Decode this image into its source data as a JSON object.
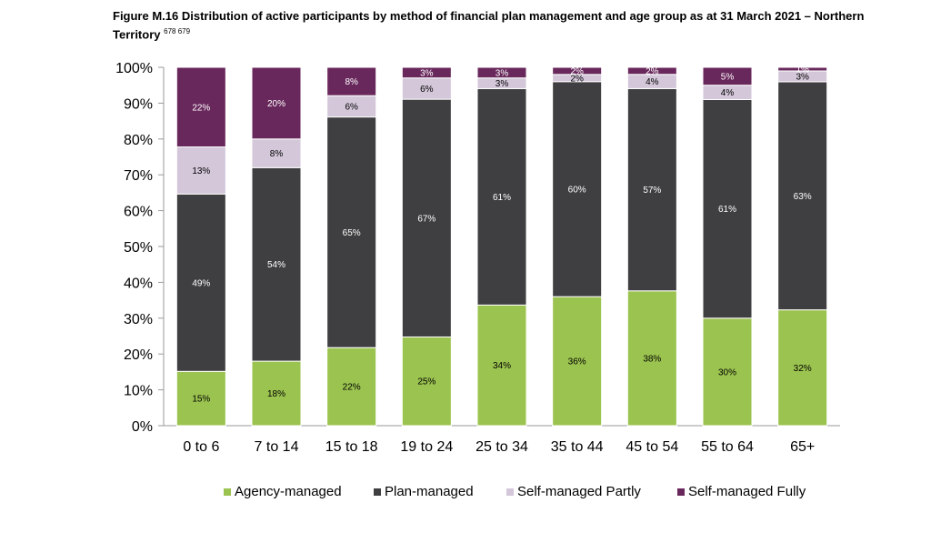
{
  "figure": {
    "title": "Figure M.16 Distribution of active participants by method of financial plan management and age group as at 31 March 2021 – Northern Territory",
    "footnote_refs": "678 679"
  },
  "chart_data": {
    "type": "bar",
    "stacked": true,
    "title": "",
    "xlabel": "",
    "ylabel": "",
    "ylim": [
      0,
      100
    ],
    "y_ticks": [
      "0%",
      "10%",
      "20%",
      "30%",
      "40%",
      "50%",
      "60%",
      "70%",
      "80%",
      "90%",
      "100%"
    ],
    "categories": [
      "0 to 6",
      "7 to 14",
      "15 to 18",
      "19 to 24",
      "25 to 34",
      "35 to 44",
      "45 to 54",
      "55 to 64",
      "65+"
    ],
    "series": [
      {
        "name": "Agency-managed",
        "color": "#9bc34f",
        "label_color": "#000000",
        "values": [
          15,
          18,
          22,
          25,
          34,
          36,
          38,
          30,
          32
        ],
        "labels": [
          "15%",
          "18%",
          "22%",
          "25%",
          "34%",
          "36%",
          "38%",
          "30%",
          "32%"
        ]
      },
      {
        "name": "Plan-managed",
        "color": "#3f3f41",
        "label_color": "#ffffff",
        "values": [
          49,
          54,
          65,
          67,
          61,
          60,
          57,
          61,
          63
        ],
        "labels": [
          "49%",
          "54%",
          "65%",
          "67%",
          "61%",
          "60%",
          "57%",
          "61%",
          "63%"
        ]
      },
      {
        "name": "Self-managed Partly",
        "color": "#d3c7d9",
        "label_color": "#000000",
        "values": [
          13,
          8,
          6,
          6,
          3,
          2,
          4,
          4,
          3
        ],
        "labels": [
          "13%",
          "8%",
          "6%",
          "6%",
          "3%",
          "2%",
          "4%",
          "4%",
          "3%"
        ]
      },
      {
        "name": "Self-managed Fully",
        "color": "#69285c",
        "label_color": "#ffffff",
        "values": [
          22,
          20,
          8,
          3,
          3,
          2,
          2,
          5,
          1
        ],
        "labels": [
          "22%",
          "20%",
          "8%",
          "3%",
          "3%",
          "2%",
          "2%",
          "5%",
          "1%"
        ]
      }
    ],
    "grid": false,
    "legend_position": "bottom"
  }
}
